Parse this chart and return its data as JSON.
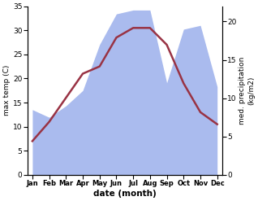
{
  "months": [
    "Jan",
    "Feb",
    "Mar",
    "Apr",
    "May",
    "Jun",
    "Jul",
    "Aug",
    "Sep",
    "Oct",
    "Nov",
    "Dec"
  ],
  "month_positions": [
    0,
    1,
    2,
    3,
    4,
    5,
    6,
    7,
    8,
    9,
    10,
    11
  ],
  "max_temp": [
    7,
    11,
    16,
    21,
    22.5,
    28.5,
    30.5,
    30.5,
    27,
    19,
    13,
    10.5
  ],
  "precipitation": [
    8.5,
    7.5,
    9,
    11,
    17,
    21,
    21.5,
    21.5,
    12,
    19,
    19.5,
    11.5
  ],
  "temp_color": "#993344",
  "precip_fill_color": "#aabbee",
  "left_ylabel": "max temp (C)",
  "right_ylabel": "med. precipitation\n(kg/m2)",
  "xlabel": "date (month)",
  "left_ylim": [
    0,
    35
  ],
  "right_ylim": [
    0,
    22
  ],
  "temp_lw": 1.8,
  "background_color": "#ffffff"
}
